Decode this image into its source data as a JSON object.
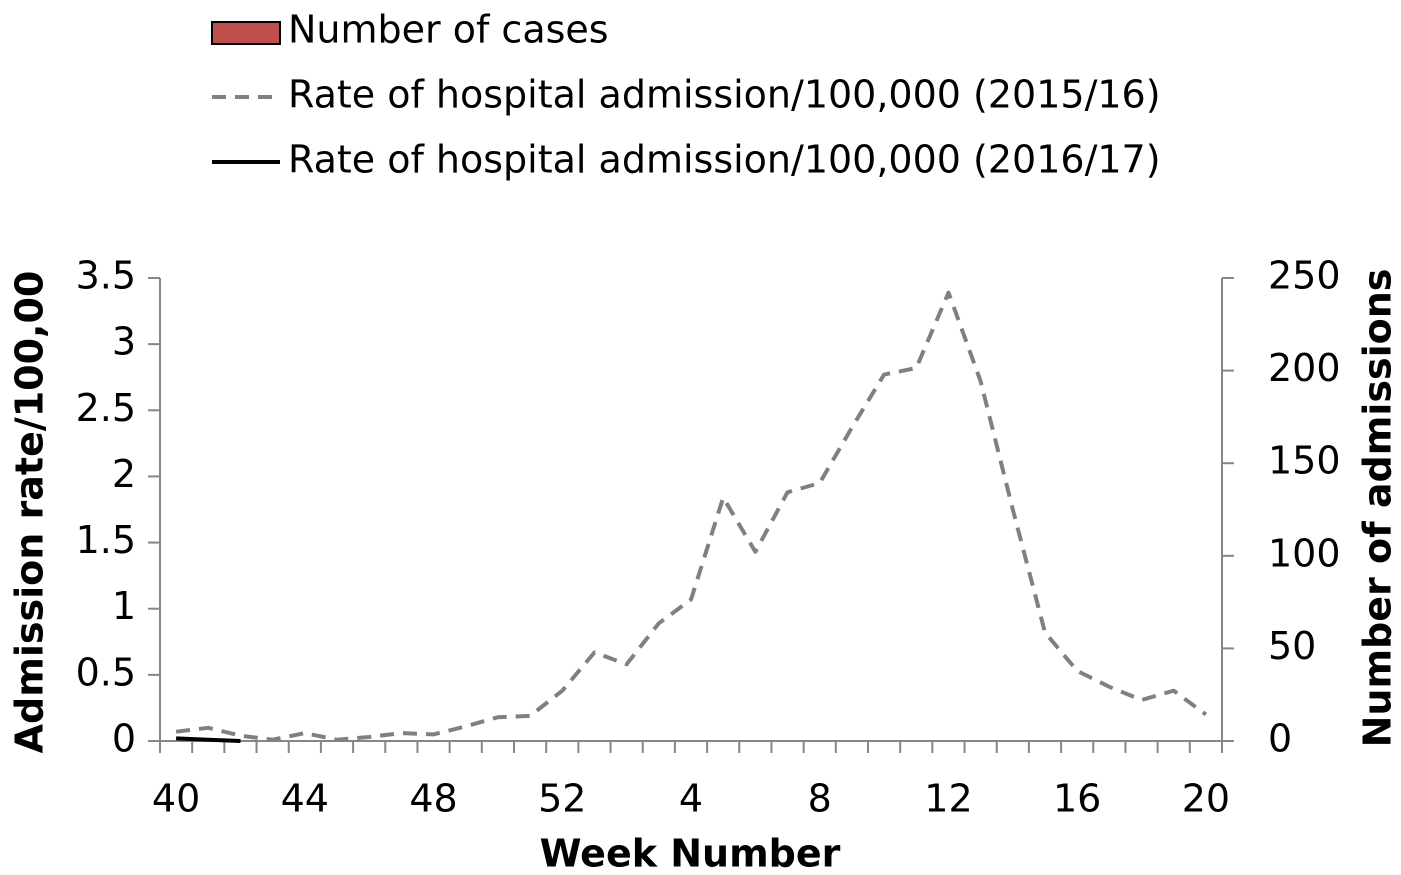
{
  "chart_data": {
    "type": "line",
    "x_label": "Week Number",
    "y_label": "Admission rate/100,00",
    "y2_label": "Number of admissions",
    "categories": [
      40,
      null,
      null,
      null,
      44,
      null,
      null,
      null,
      48,
      null,
      null,
      null,
      52,
      null,
      null,
      null,
      4,
      null,
      null,
      null,
      8,
      null,
      null,
      null,
      12,
      null,
      null,
      null,
      16,
      null,
      null,
      null,
      20
    ],
    "ylim": [
      0,
      3.5
    ],
    "yticks": [
      0,
      0.5,
      1,
      1.5,
      2,
      2.5,
      3,
      3.5
    ],
    "y2lim": [
      0,
      250
    ],
    "y2ticks": [
      0,
      50,
      100,
      150,
      200,
      250
    ],
    "legend": "top-left",
    "series": [
      {
        "name": "Number of cases",
        "type": "bar",
        "axis": "y2",
        "color": "#c0504d",
        "values": [
          0,
          0,
          0,
          null,
          null,
          null,
          null,
          null,
          null,
          null,
          null,
          null,
          null,
          null,
          null,
          null,
          null,
          null,
          null,
          null,
          null,
          null,
          null,
          null,
          null,
          null,
          null,
          null,
          null,
          null,
          null,
          null,
          null
        ]
      },
      {
        "name": "Rate of hospital admission/100,000 (2015/16)",
        "type": "line",
        "line_style": "dashed",
        "color": "#808080",
        "values": [
          0.07,
          0.1,
          0.04,
          0.01,
          0.06,
          0.01,
          0.03,
          0.06,
          0.05,
          0.11,
          0.18,
          0.19,
          0.38,
          0.67,
          0.58,
          0.89,
          1.07,
          1.84,
          1.43,
          1.88,
          1.95,
          2.37,
          2.77,
          2.82,
          3.39,
          2.72,
          1.75,
          0.82,
          0.53,
          0.41,
          0.31,
          0.38,
          0.2
        ]
      },
      {
        "name": "Rate of hospital admission/100,000 (2016/17)",
        "type": "line",
        "line_style": "solid",
        "color": "#000000",
        "values": [
          0.02,
          0.01,
          0.0,
          null,
          null,
          null,
          null,
          null,
          null,
          null,
          null,
          null,
          null,
          null,
          null,
          null,
          null,
          null,
          null,
          null,
          null,
          null,
          null,
          null,
          null,
          null,
          null,
          null,
          null,
          null,
          null,
          null,
          null
        ]
      }
    ]
  }
}
